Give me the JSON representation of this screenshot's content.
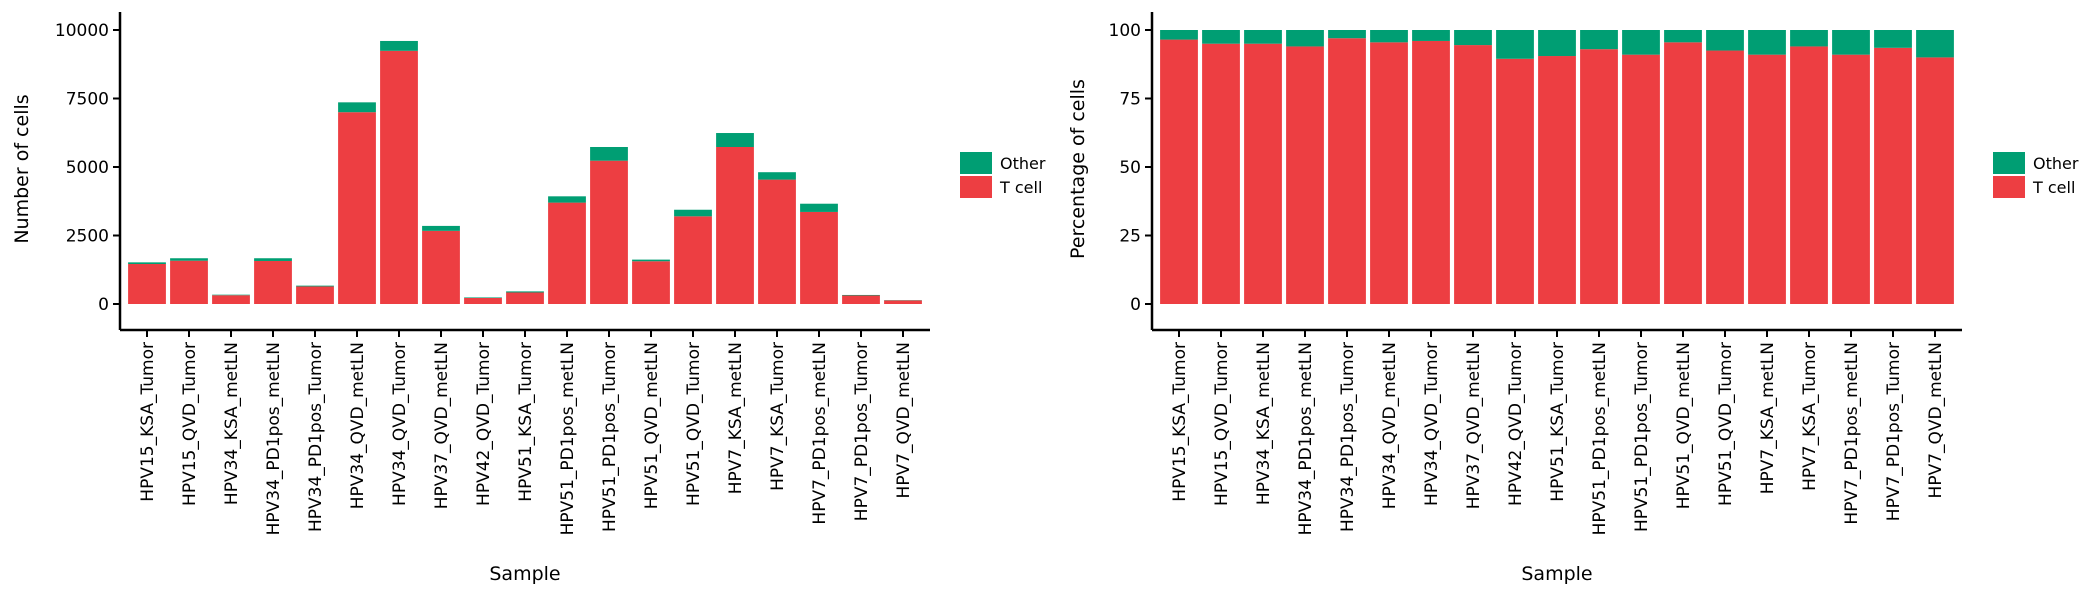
{
  "chart_data": [
    {
      "type": "bar",
      "stacked": true,
      "xlabel": "Sample",
      "ylabel": "Number of cells",
      "ylim": [
        0,
        10000
      ],
      "yticks": [
        0,
        2500,
        5000,
        7500,
        10000
      ],
      "legend_position": "right",
      "categories": [
        "HPV15_KSA_Tumor",
        "HPV15_QVD_Tumor",
        "HPV34_KSA_metLN",
        "HPV34_PD1pos_metLN",
        "HPV34_PD1pos_Tumor",
        "HPV34_QVD_metLN",
        "HPV34_QVD_Tumor",
        "HPV37_QVD_metLN",
        "HPV42_QVD_Tumor",
        "HPV51_KSA_Tumor",
        "HPV51_PD1pos_metLN",
        "HPV51_PD1pos_Tumor",
        "HPV51_QVD_metLN",
        "HPV51_QVD_Tumor",
        "HPV7_KSA_metLN",
        "HPV7_KSA_Tumor",
        "HPV7_PD1pos_metLN",
        "HPV7_PD1pos_Tumor",
        "HPV7_QVD_metLN"
      ],
      "series": [
        {
          "name": "T cell",
          "color": "#ED3E42",
          "values": [
            1460,
            1580,
            320,
            1570,
            640,
            7000,
            9240,
            2670,
            220,
            420,
            3700,
            5230,
            1560,
            3200,
            5730,
            4540,
            3360,
            310,
            130
          ]
        },
        {
          "name": "Other",
          "color": "#009E73",
          "values": [
            60,
            90,
            20,
            100,
            30,
            360,
            360,
            180,
            20,
            40,
            230,
            500,
            60,
            240,
            510,
            270,
            300,
            20,
            10
          ]
        }
      ]
    },
    {
      "type": "bar",
      "stacked": true,
      "xlabel": "Sample",
      "ylabel": "Percentage of cells",
      "ylim": [
        0,
        100
      ],
      "yticks": [
        0,
        25,
        50,
        75,
        100
      ],
      "legend_position": "right",
      "categories": [
        "HPV15_KSA_Tumor",
        "HPV15_QVD_Tumor",
        "HPV34_KSA_metLN",
        "HPV34_PD1pos_metLN",
        "HPV34_PD1pos_Tumor",
        "HPV34_QVD_metLN",
        "HPV34_QVD_Tumor",
        "HPV37_QVD_metLN",
        "HPV42_QVD_Tumor",
        "HPV51_KSA_Tumor",
        "HPV51_PD1pos_metLN",
        "HPV51_PD1pos_Tumor",
        "HPV51_QVD_metLN",
        "HPV51_QVD_Tumor",
        "HPV7_KSA_metLN",
        "HPV7_KSA_Tumor",
        "HPV7_PD1pos_metLN",
        "HPV7_PD1pos_Tumor",
        "HPV7_QVD_metLN"
      ],
      "series": [
        {
          "name": "T cell",
          "color": "#ED3E42",
          "values": [
            96.5,
            95.0,
            95.0,
            94.0,
            97.0,
            95.5,
            96.0,
            94.5,
            89.5,
            90.5,
            93.0,
            91.0,
            95.5,
            92.5,
            91.0,
            94.0,
            91.0,
            93.5,
            90.0
          ]
        },
        {
          "name": "Other",
          "color": "#009E73",
          "values": [
            3.5,
            5.0,
            5.0,
            6.0,
            3.0,
            4.5,
            4.0,
            5.5,
            10.5,
            9.5,
            7.0,
            9.0,
            4.5,
            7.5,
            9.0,
            6.0,
            9.0,
            6.5,
            10.0
          ]
        }
      ]
    }
  ]
}
